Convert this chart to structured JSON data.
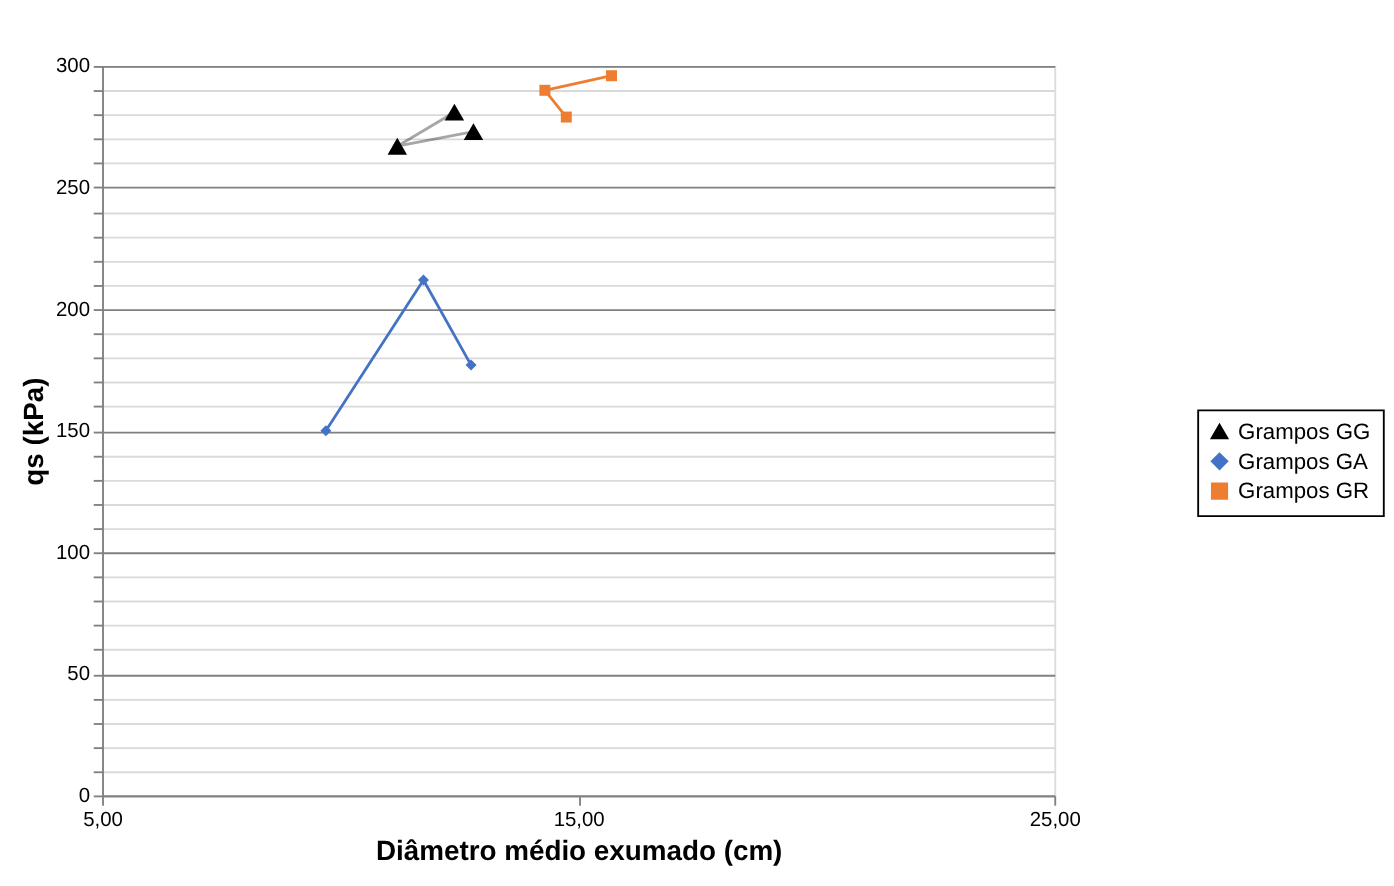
{
  "chart_data": {
    "type": "line",
    "xlabel": "Diâmetro médio exumado (cm)",
    "ylabel": "qs (kPa)",
    "xlim": [
      5,
      25
    ],
    "xticks": [
      {
        "value": 5,
        "label": "5,00"
      },
      {
        "value": 15,
        "label": "15,00"
      },
      {
        "value": 25,
        "label": "25,00"
      }
    ],
    "ylim": [
      0,
      300
    ],
    "yticks": [
      0,
      {
        "value": 10,
        "label": null
      },
      {
        "value": 20,
        "label": null
      },
      {
        "value": 30,
        "label": null
      },
      {
        "value": 40,
        "label": null
      },
      50,
      {
        "value": 60,
        "label": null
      },
      {
        "value": 70,
        "label": null
      },
      {
        "value": 80,
        "label": null
      },
      {
        "value": 90,
        "label": null
      },
      100,
      {
        "value": 110,
        "label": null
      },
      {
        "value": 120,
        "label": null
      },
      {
        "value": 130,
        "label": null
      },
      {
        "value": 140,
        "label": null
      },
      150,
      {
        "value": 160,
        "label": null
      },
      {
        "value": 170,
        "label": null
      },
      {
        "value": 180,
        "label": null
      },
      {
        "value": 190,
        "label": null
      },
      200,
      {
        "value": 210,
        "label": null
      },
      {
        "value": 220,
        "label": null
      },
      {
        "value": 230,
        "label": null
      },
      {
        "value": 240,
        "label": null
      },
      250,
      {
        "value": 260,
        "label": null
      },
      {
        "value": 270,
        "label": null
      },
      {
        "value": 280,
        "label": null
      },
      {
        "value": 290,
        "label": null
      },
      300
    ],
    "grid": "y",
    "legend": "right",
    "series": [
      {
        "name": "Grampos GG",
        "color": "#000000",
        "marker": "triangle",
        "x": [
          12.4,
          11.2,
          12.8
        ],
        "values": [
          281,
          267,
          273
        ]
      },
      {
        "name": "Grampos GA",
        "color": "#4472c4",
        "marker": "diamond",
        "x": [
          9.7,
          11.75,
          12.75
        ],
        "values": [
          150,
          212,
          177
        ]
      },
      {
        "name": "Grampos GR",
        "color": "#ed7d31",
        "marker": "square",
        "x": [
          14.75,
          14.3,
          15.7
        ],
        "values": [
          279,
          290,
          296
        ]
      }
    ]
  }
}
